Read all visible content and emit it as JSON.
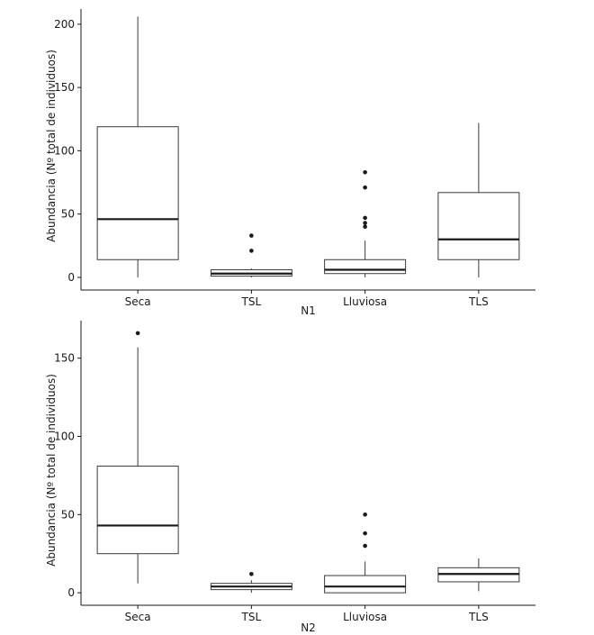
{
  "chart_data": [
    {
      "type": "boxplot",
      "xlabel": "N1",
      "ylabel": "Abundancia (Nº total de individuos)",
      "categories": [
        "Seca",
        "TSL",
        "Lluviosa",
        "TLS"
      ],
      "ylim": [
        -10,
        212
      ],
      "yticks": [
        0,
        50,
        100,
        150,
        200
      ],
      "grid": false,
      "boxes": [
        {
          "category": "Seca",
          "whisker_low": 0,
          "q1": 14,
          "median": 46,
          "q3": 119,
          "whisker_high": 206,
          "outliers": []
        },
        {
          "category": "TSL",
          "whisker_low": 0,
          "q1": 1,
          "median": 3,
          "q3": 6,
          "whisker_high": 7,
          "outliers": [
            21,
            33
          ]
        },
        {
          "category": "Lluviosa",
          "whisker_low": 0,
          "q1": 3,
          "median": 6,
          "q3": 14,
          "whisker_high": 29,
          "outliers": [
            40,
            43,
            47,
            71,
            83
          ]
        },
        {
          "category": "TLS",
          "whisker_low": 0,
          "q1": 14,
          "median": 30,
          "q3": 67,
          "whisker_high": 122,
          "outliers": []
        }
      ]
    },
    {
      "type": "boxplot",
      "xlabel": "N2",
      "ylabel": "Abundancia (Nº total de individuos)",
      "categories": [
        "Seca",
        "TSL",
        "Lluviosa",
        "TLS"
      ],
      "ylim": [
        -8,
        174
      ],
      "yticks": [
        0,
        50,
        100,
        150
      ],
      "grid": false,
      "boxes": [
        {
          "category": "Seca",
          "whisker_low": 6,
          "q1": 25,
          "median": 43,
          "q3": 81,
          "whisker_high": 157,
          "outliers": [
            166
          ]
        },
        {
          "category": "TSL",
          "whisker_low": 0,
          "q1": 2,
          "median": 4,
          "q3": 6,
          "whisker_high": 8,
          "outliers": [
            12
          ]
        },
        {
          "category": "Lluviosa",
          "whisker_low": 0,
          "q1": 0,
          "median": 4,
          "q3": 11,
          "whisker_high": 20,
          "outliers": [
            30,
            38,
            50
          ]
        },
        {
          "category": "TLS",
          "whisker_low": 1,
          "q1": 7,
          "median": 12,
          "q3": 16,
          "whisker_high": 22,
          "outliers": []
        }
      ]
    }
  ],
  "colors": {
    "box_fill": "#ffffff",
    "box_stroke": "#3a3a3a",
    "median": "#1a1a1a",
    "outlier": "#1a1a1a",
    "axis": "#1a1a1a"
  }
}
